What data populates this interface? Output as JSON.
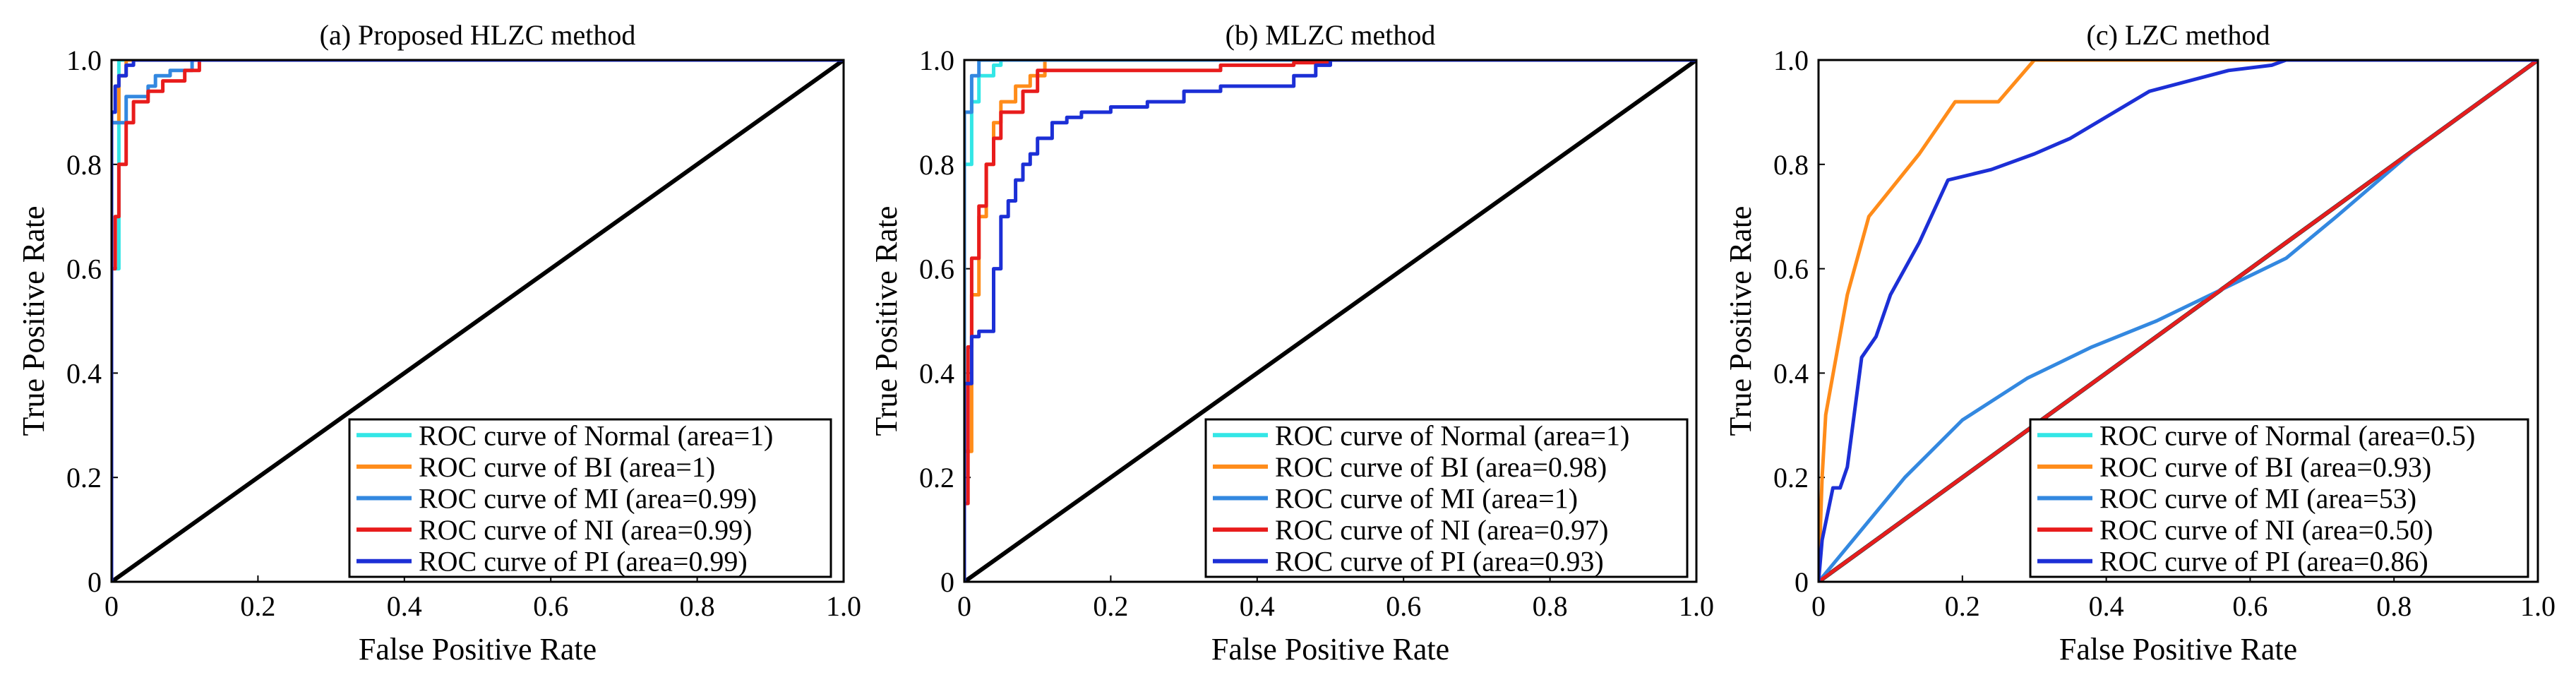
{
  "chart_data": [
    {
      "type": "line",
      "title": "(a) Proposed HLZC method",
      "xlabel": "False Positive Rate",
      "ylabel": "True Positive Rate",
      "xlim": [
        0,
        1
      ],
      "ylim": [
        0,
        1
      ],
      "x_ticks": [
        "0",
        "0.2",
        "0.4",
        "0.6",
        "0.8",
        "1.0"
      ],
      "y_ticks": [
        "0",
        "0.2",
        "0.4",
        "0.6",
        "0.8",
        "1.0"
      ],
      "legend_position": "bottom-right",
      "diagonal": {
        "x": [
          0,
          1
        ],
        "y": [
          0,
          1
        ],
        "color": "#000000"
      },
      "series": [
        {
          "name": "ROC curve of Normal (area=1)",
          "color": "#33e6e6",
          "x": [
            0,
            0,
            0.01,
            0.01,
            1
          ],
          "y": [
            0,
            0.6,
            0.6,
            1,
            1
          ]
        },
        {
          "name": "ROC curve of BI (area=1)",
          "color": "#ff8c1a",
          "x": [
            0,
            0,
            0.01,
            0.01,
            0.02,
            0.02,
            1
          ],
          "y": [
            0,
            0.88,
            0.88,
            0.97,
            0.97,
            1,
            1
          ]
        },
        {
          "name": "ROC curve of MI (area=0.99)",
          "color": "#3388e0",
          "x": [
            0,
            0,
            0.02,
            0.02,
            0.05,
            0.05,
            0.06,
            0.06,
            0.08,
            0.08,
            0.11,
            0.11,
            1
          ],
          "y": [
            0,
            0.88,
            0.88,
            0.93,
            0.93,
            0.95,
            0.95,
            0.97,
            0.97,
            0.98,
            0.98,
            1,
            1
          ]
        },
        {
          "name": "ROC curve of NI (area=0.99)",
          "color": "#e81c1c",
          "x": [
            0,
            0,
            0.005,
            0.005,
            0.01,
            0.01,
            0.02,
            0.02,
            0.03,
            0.03,
            0.05,
            0.05,
            0.07,
            0.07,
            0.1,
            0.1,
            0.12,
            0.12,
            1
          ],
          "y": [
            0,
            0.6,
            0.6,
            0.7,
            0.7,
            0.8,
            0.8,
            0.88,
            0.88,
            0.92,
            0.92,
            0.94,
            0.94,
            0.96,
            0.96,
            0.98,
            0.98,
            1,
            1
          ]
        },
        {
          "name": "ROC curve of PI (area=0.99)",
          "color": "#1c2fd6",
          "x": [
            0,
            0,
            0.005,
            0.005,
            0.01,
            0.01,
            0.02,
            0.02,
            0.03,
            0.03,
            1
          ],
          "y": [
            0,
            0.9,
            0.9,
            0.95,
            0.95,
            0.97,
            0.97,
            0.99,
            0.99,
            1,
            1
          ]
        }
      ]
    },
    {
      "type": "line",
      "title": "(b)  MLZC method",
      "xlabel": "False Positive Rate",
      "ylabel": "True Positive Rate",
      "xlim": [
        0,
        1
      ],
      "ylim": [
        0,
        1
      ],
      "x_ticks": [
        "0",
        "0.2",
        "0.4",
        "0.6",
        "0.8",
        "1.0"
      ],
      "y_ticks": [
        "0",
        "0.2",
        "0.4",
        "0.6",
        "0.8",
        "1.0"
      ],
      "legend_position": "bottom-right",
      "diagonal": {
        "x": [
          0,
          1
        ],
        "y": [
          0,
          1
        ],
        "color": "#000000"
      },
      "series": [
        {
          "name": "ROC curve of Normal (area=1)",
          "color": "#33e6e6",
          "x": [
            0,
            0,
            0.01,
            0.01,
            0.02,
            0.02,
            0.04,
            0.04,
            0.05,
            0.05,
            1
          ],
          "y": [
            0,
            0.8,
            0.8,
            0.92,
            0.92,
            0.97,
            0.97,
            0.99,
            0.99,
            1,
            1
          ]
        },
        {
          "name": "ROC curve of BI (area=0.98)",
          "color": "#ff8c1a",
          "x": [
            0,
            0,
            0.01,
            0.01,
            0.02,
            0.02,
            0.03,
            0.03,
            0.04,
            0.04,
            0.05,
            0.05,
            0.07,
            0.07,
            0.09,
            0.09,
            0.11,
            0.11,
            1
          ],
          "y": [
            0,
            0.25,
            0.25,
            0.55,
            0.55,
            0.7,
            0.7,
            0.8,
            0.8,
            0.88,
            0.88,
            0.92,
            0.92,
            0.95,
            0.95,
            0.97,
            0.97,
            1,
            1
          ]
        },
        {
          "name": "ROC curve of MI (area=1)",
          "color": "#3388e0",
          "x": [
            0,
            0,
            0.01,
            0.01,
            0.02,
            0.02,
            1
          ],
          "y": [
            0,
            0.9,
            0.9,
            0.97,
            0.97,
            1,
            1
          ]
        },
        {
          "name": "ROC curve of NI (area=0.97)",
          "color": "#e81c1c",
          "x": [
            0,
            0,
            0.005,
            0.005,
            0.01,
            0.01,
            0.02,
            0.02,
            0.03,
            0.03,
            0.04,
            0.04,
            0.05,
            0.05,
            0.08,
            0.08,
            0.1,
            0.1,
            0.35,
            0.35,
            0.45,
            0.45,
            0.5,
            0.5,
            1
          ],
          "y": [
            0,
            0.15,
            0.15,
            0.45,
            0.45,
            0.62,
            0.62,
            0.72,
            0.72,
            0.8,
            0.8,
            0.85,
            0.85,
            0.9,
            0.9,
            0.94,
            0.94,
            0.98,
            0.98,
            0.99,
            0.99,
            0.995,
            0.995,
            1,
            1
          ]
        },
        {
          "name": "ROC curve of PI (area=0.93)",
          "color": "#1c2fd6",
          "x": [
            0,
            0,
            0.01,
            0.01,
            0.02,
            0.02,
            0.04,
            0.04,
            0.05,
            0.05,
            0.06,
            0.06,
            0.07,
            0.07,
            0.08,
            0.08,
            0.09,
            0.09,
            0.1,
            0.1,
            0.12,
            0.12,
            0.14,
            0.14,
            0.16,
            0.16,
            0.2,
            0.2,
            0.25,
            0.25,
            0.3,
            0.3,
            0.35,
            0.35,
            0.45,
            0.45,
            0.48,
            0.48,
            0.5,
            0.5,
            1
          ],
          "y": [
            0,
            0.38,
            0.38,
            0.47,
            0.47,
            0.48,
            0.48,
            0.6,
            0.6,
            0.7,
            0.7,
            0.73,
            0.73,
            0.77,
            0.77,
            0.8,
            0.8,
            0.82,
            0.82,
            0.85,
            0.85,
            0.88,
            0.88,
            0.89,
            0.89,
            0.9,
            0.9,
            0.91,
            0.91,
            0.92,
            0.92,
            0.94,
            0.94,
            0.95,
            0.95,
            0.97,
            0.97,
            0.99,
            0.99,
            1,
            1
          ]
        }
      ]
    },
    {
      "type": "line",
      "title": "(c)  LZC method",
      "xlabel": "False Positive Rate",
      "ylabel": "True Positive Rate",
      "xlim": [
        0,
        1
      ],
      "ylim": [
        0,
        1
      ],
      "x_ticks": [
        "0",
        "0.2",
        "0.4",
        "0.6",
        "0.8",
        "1.0"
      ],
      "y_ticks": [
        "0",
        "0.2",
        "0.4",
        "0.6",
        "0.8",
        "1.0"
      ],
      "legend_position": "bottom-right",
      "diagonal": {
        "x": [
          0,
          1
        ],
        "y": [
          0,
          1
        ],
        "color": "#000000"
      },
      "series": [
        {
          "name": "ROC curve of Normal (area=0.5)",
          "color": "#33e6e6",
          "x": [
            0,
            1
          ],
          "y": [
            0,
            1
          ]
        },
        {
          "name": "ROC curve of BI (area=0.93)",
          "color": "#ff8c1a",
          "x": [
            0,
            0.005,
            0.01,
            0.04,
            0.07,
            0.14,
            0.19,
            0.25,
            0.3,
            1
          ],
          "y": [
            0,
            0.2,
            0.32,
            0.55,
            0.7,
            0.82,
            0.92,
            0.92,
            1,
            1
          ]
        },
        {
          "name": "ROC curve of MI (area=53)",
          "color": "#3388e0",
          "x": [
            0,
            0.12,
            0.2,
            0.29,
            0.38,
            0.47,
            0.56,
            0.65,
            0.72,
            0.83,
            1
          ],
          "y": [
            0,
            0.2,
            0.31,
            0.39,
            0.45,
            0.5,
            0.56,
            0.62,
            0.7,
            0.83,
            1
          ]
        },
        {
          "name": "ROC curve of NI (area=0.50)",
          "color": "#e81c1c",
          "x": [
            0,
            1
          ],
          "y": [
            0,
            1
          ]
        },
        {
          "name": "ROC curve of PI (area=0.86)",
          "color": "#1c2fd6",
          "x": [
            0,
            0.005,
            0.02,
            0.03,
            0.04,
            0.06,
            0.08,
            0.1,
            0.14,
            0.18,
            0.24,
            0.3,
            0.35,
            0.46,
            0.57,
            0.63,
            0.65,
            1
          ],
          "y": [
            0,
            0.08,
            0.18,
            0.18,
            0.22,
            0.43,
            0.47,
            0.55,
            0.65,
            0.77,
            0.79,
            0.82,
            0.85,
            0.94,
            0.98,
            0.99,
            1,
            1
          ]
        }
      ]
    }
  ]
}
